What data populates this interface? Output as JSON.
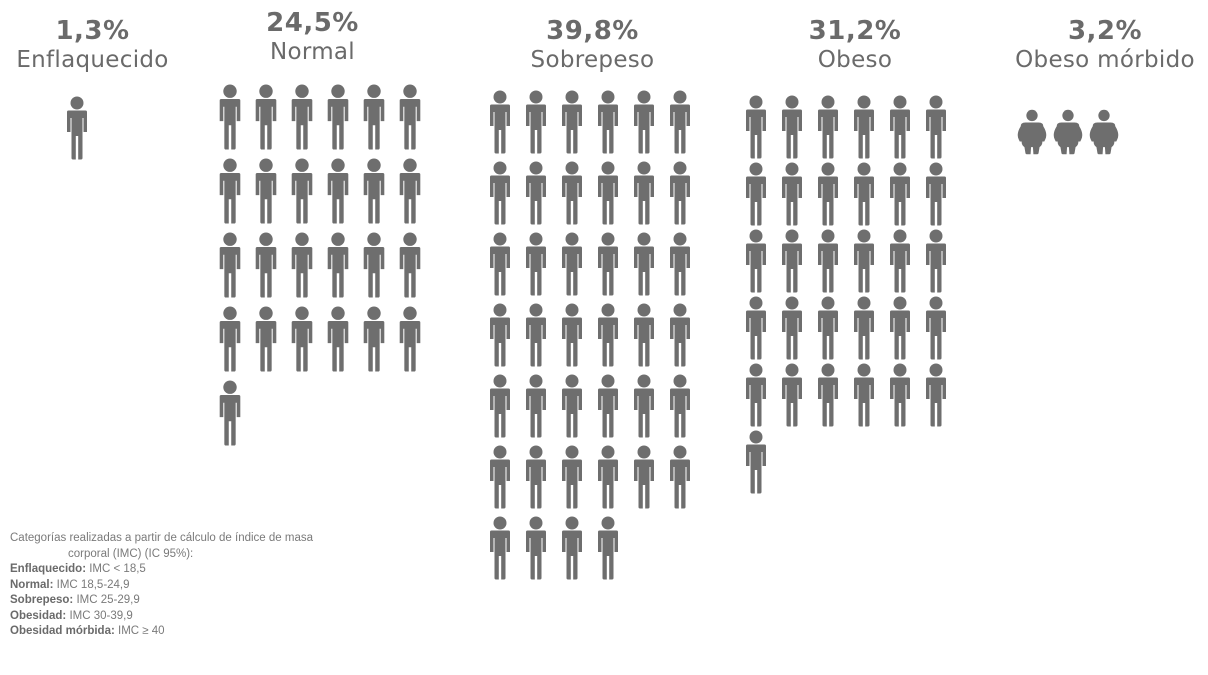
{
  "chart_data": {
    "type": "pictogram",
    "title": "",
    "categories": [
      {
        "name": "Enflaquecido",
        "percent_label": "1,3%",
        "value": 1.3,
        "icon_count": 1,
        "icon": "person-icon"
      },
      {
        "name": "Normal",
        "percent_label": "24,5%",
        "value": 24.5,
        "icon_count": 25,
        "icon": "person-icon"
      },
      {
        "name": "Sobrepeso",
        "percent_label": "39,8%",
        "value": 39.8,
        "icon_count": 40,
        "icon": "person-icon"
      },
      {
        "name": "Obeso",
        "percent_label": "31,2%",
        "value": 31.2,
        "icon_count": 31,
        "icon": "person-icon"
      },
      {
        "name": "Obeso mórbido",
        "percent_label": "3,2%",
        "value": 3.2,
        "icon_count": 3,
        "icon": "obese-person-icon"
      }
    ],
    "icon_color": "#6e6e6e"
  },
  "legend": {
    "note_line1": "Categorías realizadas a partir de cálculo de índice de masa",
    "note_line2": "corporal (IMC) (IC 95%):",
    "items": [
      {
        "label": "Enflaquecido:",
        "value": "IMC < 18,5"
      },
      {
        "label": "Normal:",
        "value": "IMC  18,5-24,9"
      },
      {
        "label": "Sobrepeso:",
        "value": "IMC 25-29,9"
      },
      {
        "label": "Obesidad:",
        "value": "IMC 30-39,9"
      },
      {
        "label": "Obesidad mórbida:",
        "value": "IMC ≥ 40"
      }
    ]
  }
}
